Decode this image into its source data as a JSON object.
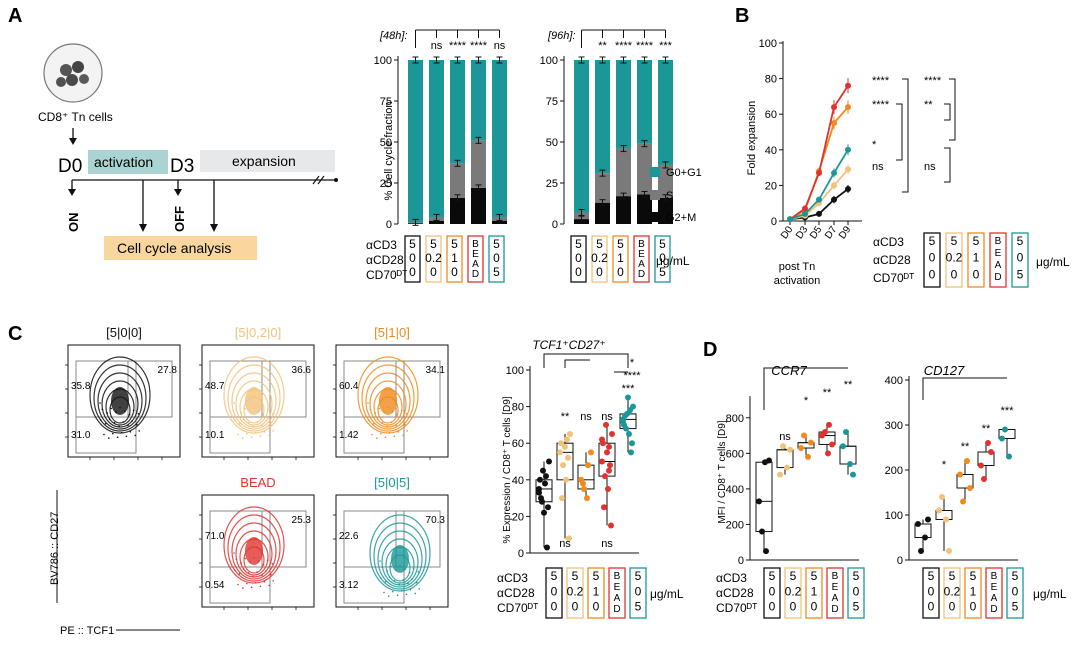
{
  "panels": {
    "A": "A",
    "B": "B",
    "C": "C",
    "D": "D"
  },
  "panelA": {
    "cells_label": "CD8⁺ Tn cells",
    "d0": "D0",
    "d3": "D3",
    "activation": "activation",
    "expansion": "expansion",
    "on": "ON",
    "off": "OFF",
    "cell_cycle_analysis": "Cell cycle analysis",
    "ylabel": "% Cell cycle fraction",
    "legend": [
      "G0+G1",
      "S",
      "G2+M"
    ],
    "colors": {
      "g0": "#1b9797",
      "s": "#7a7a7a",
      "g2": "#0a0a0a"
    },
    "units": "μg/mL",
    "row_labels": [
      "αCD3",
      "αCD28",
      "CD70ᴰᵀ"
    ],
    "conditions": [
      {
        "col1": "5",
        "col2": "0",
        "col3": "0",
        "color": "#111111"
      },
      {
        "col1": "5",
        "col2": "0.2",
        "col3": "0",
        "color": "#f2c27a"
      },
      {
        "col1": "5",
        "col2": "1",
        "col3": "0",
        "color": "#f08a1c"
      },
      {
        "col1": "B",
        "col2": "E A",
        "col3": "D",
        "color": "#e0332f"
      },
      {
        "col1": "5",
        "col2": "0",
        "col3": "5",
        "color": "#1b9797"
      }
    ],
    "chart48": {
      "title": "[48h]:",
      "sig": [
        "ns",
        "****",
        "****",
        "ns"
      ],
      "g2": [
        0.5,
        2,
        16,
        22,
        2
      ],
      "s": [
        0.5,
        2,
        21,
        29,
        2
      ],
      "g0": [
        99,
        96,
        63,
        49,
        96
      ]
    },
    "chart96": {
      "title": "[96h]:",
      "sig": [
        "**",
        "****",
        "****",
        "***"
      ],
      "g2": [
        3,
        13,
        17,
        18,
        16
      ],
      "s": [
        4,
        18,
        29,
        31,
        20
      ],
      "g0": [
        93,
        69,
        54,
        51,
        64
      ]
    }
  },
  "panelB": {
    "ylabel": "Fold expansion",
    "xlabel1": "post Tn",
    "xlabel2": "activation",
    "yticks": [
      "0",
      "20",
      "40",
      "60",
      "80",
      "100"
    ],
    "xticks": [
      "D0",
      "D3",
      "D5",
      "D7",
      "D9"
    ],
    "sig_col1": [
      "****",
      "****",
      "*",
      "ns"
    ],
    "sig_col2": [
      "****",
      "**",
      "ns"
    ],
    "chart_data": {
      "type": "line",
      "x": [
        0,
        3,
        5,
        7,
        9
      ],
      "ylim": [
        0,
        100
      ],
      "series": [
        {
          "name": "5|0|0",
          "color": "#111111",
          "values": [
            1,
            2,
            4,
            12,
            18
          ]
        },
        {
          "name": "5|0.2|0",
          "color": "#f2c27a",
          "values": [
            1,
            3,
            10,
            20,
            29
          ]
        },
        {
          "name": "5|1|0",
          "color": "#f08a1c",
          "values": [
            1,
            6,
            28,
            55,
            64
          ]
        },
        {
          "name": "BEAD",
          "color": "#e0332f",
          "values": [
            1,
            7,
            27,
            64,
            76
          ]
        },
        {
          "name": "5|0|5",
          "color": "#1b9797",
          "values": [
            1,
            4,
            12,
            27,
            40
          ]
        }
      ]
    }
  },
  "panelC": {
    "titles": [
      "[5|0|0]",
      "[5|0,2|0]",
      "[5|1|0]",
      "BEAD",
      "[5|0|5]"
    ],
    "colors": [
      "#111111",
      "#f2c27a",
      "#f08a1c",
      "#e0332f",
      "#1b9797"
    ],
    "values": [
      [
        "35.8",
        "27.8",
        "31.0"
      ],
      [
        "48.7",
        "36.6",
        "10.1"
      ],
      [
        "60.4",
        "34.1",
        "1.42"
      ],
      [
        "71.0",
        "25.3",
        "0.54"
      ],
      [
        "22.6",
        "70.3",
        "3.12"
      ]
    ],
    "yaxis": "BV786 :: CD27",
    "xaxis": "PE :: TCF1",
    "box_title": "TCF1⁺CD27⁺",
    "box_ylabel": "% Expression / CD8⁺ T cells [D9]",
    "box_sig": [
      "**",
      "ns",
      "ns",
      "***"
    ],
    "box_sig_bottom": [
      "ns",
      "ns"
    ],
    "top_sig": [
      "*",
      "****"
    ],
    "box_yticks": [
      "0",
      "20",
      "40",
      "60",
      "80",
      "100"
    ]
  },
  "panelD": {
    "title1": "CCR7",
    "title2": "CD127",
    "ylabel": "MFI / CD8⁺ T cells [D9]",
    "yticks1": [
      "0",
      "200",
      "400",
      "600",
      "800"
    ],
    "yticks2": [
      "0",
      "100",
      "200",
      "300",
      "400"
    ],
    "sig1": [
      "ns",
      "*",
      "**",
      "**"
    ],
    "sig2": [
      "*",
      "**",
      "**",
      "***"
    ],
    "ccr7": [
      [
        330,
        50,
        160,
        560,
        550
      ],
      [
        480,
        520,
        640,
        620
      ],
      [
        630,
        580,
        700,
        660
      ],
      [
        700,
        760,
        720,
        650,
        600
      ],
      [
        640,
        540,
        720,
        480
      ]
    ],
    "cd127": [
      [
        80,
        50,
        20,
        90
      ],
      [
        110,
        90,
        140,
        20
      ],
      [
        190,
        220,
        130,
        160
      ],
      [
        210,
        260,
        180,
        240
      ],
      [
        270,
        230,
        290
      ]
    ]
  }
}
